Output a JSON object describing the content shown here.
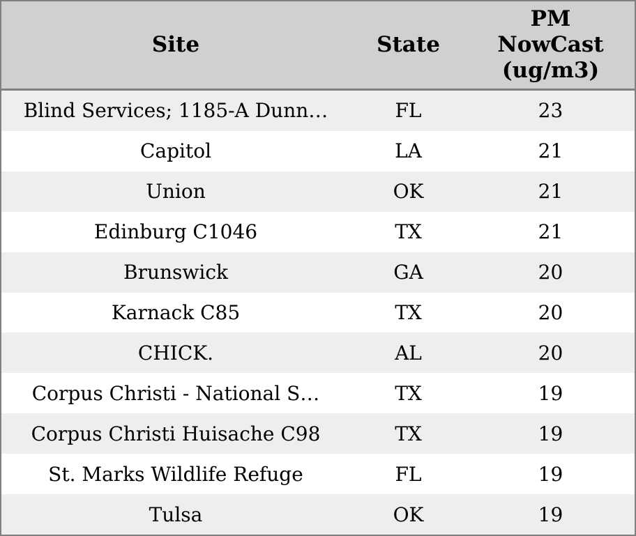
{
  "display": {
    "column_headers": [
      "Site",
      "State",
      "PM\nNowCast\n(ug/m3)"
    ]
  },
  "colors": {
    "header_background": "#d0d0d0",
    "border": "#808080",
    "row_alt_background": "#eeeeee",
    "row_background": "#ffffff",
    "text": "#000000"
  },
  "chart_data": {
    "type": "table",
    "columns": [
      "Site",
      "State",
      "PM NowCast (ug/m3)"
    ],
    "rows": [
      [
        "Blind Services; 1185-A Dunn…",
        "FL",
        23
      ],
      [
        "Capitol",
        "LA",
        21
      ],
      [
        "Union",
        "OK",
        21
      ],
      [
        "Edinburg C1046",
        "TX",
        21
      ],
      [
        "Brunswick",
        "GA",
        20
      ],
      [
        "Karnack C85",
        "TX",
        20
      ],
      [
        "CHICK.",
        "AL",
        20
      ],
      [
        "Corpus Christi - National S…",
        "TX",
        19
      ],
      [
        "Corpus Christi Huisache C98",
        "TX",
        19
      ],
      [
        "St. Marks Wildlife Refuge",
        "FL",
        19
      ],
      [
        "Tulsa",
        "OK",
        19
      ]
    ],
    "sort": "PM NowCast descending",
    "grid": "zebra-striped rows, no inner column lines"
  }
}
